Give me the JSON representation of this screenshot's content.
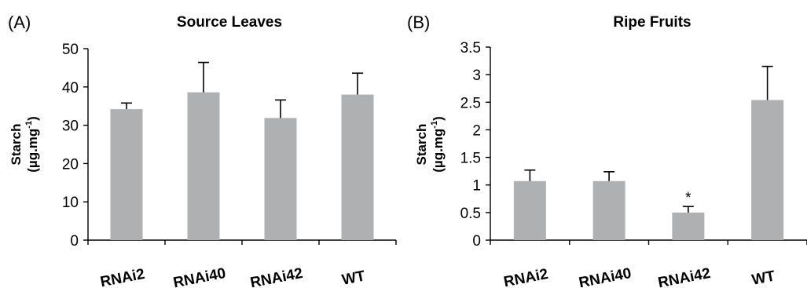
{
  "chart_data": [
    {
      "type": "bar",
      "panel_label": "(A)",
      "title": "Source Leaves",
      "ylabel_line1": "Starch",
      "ylabel_line2": "(µg.mg",
      "ylabel_sup": "-1",
      "ylabel_close": ")",
      "xlabel": "",
      "ylim": [
        0,
        50
      ],
      "yticks": [
        "0",
        "10",
        "20",
        "30",
        "40",
        "50"
      ],
      "ytick_values": [
        0,
        10,
        20,
        30,
        40,
        50
      ],
      "categories": [
        "RNAi2",
        "RNAi40",
        "RNAi42",
        "WT"
      ],
      "values": [
        34.2,
        38.6,
        31.9,
        38.0
      ],
      "errors": [
        1.6,
        7.8,
        4.7,
        5.6
      ],
      "annotations": [
        "",
        "",
        "",
        ""
      ],
      "bar_color": "#aeb0b2",
      "grid": false,
      "legend": "none"
    },
    {
      "type": "bar",
      "panel_label": "(B)",
      "title": "Ripe Fruits",
      "ylabel_line1": "Starch",
      "ylabel_line2": "(µg.mg",
      "ylabel_sup": "-1",
      "ylabel_close": ")",
      "xlabel": "",
      "ylim": [
        0,
        3.5
      ],
      "yticks": [
        "0",
        "0.5",
        "1",
        "1.5",
        "2",
        "2.5",
        "3",
        "3.5"
      ],
      "ytick_values": [
        0,
        0.5,
        1,
        1.5,
        2,
        2.5,
        3,
        3.5
      ],
      "categories": [
        "RNAi2",
        "RNAi40",
        "RNAi42",
        "WT"
      ],
      "values": [
        1.07,
        1.07,
        0.5,
        2.54
      ],
      "errors": [
        0.2,
        0.17,
        0.11,
        0.61
      ],
      "annotations": [
        "",
        "",
        "*",
        ""
      ],
      "bar_color": "#aeb0b2",
      "grid": false,
      "legend": "none"
    }
  ]
}
